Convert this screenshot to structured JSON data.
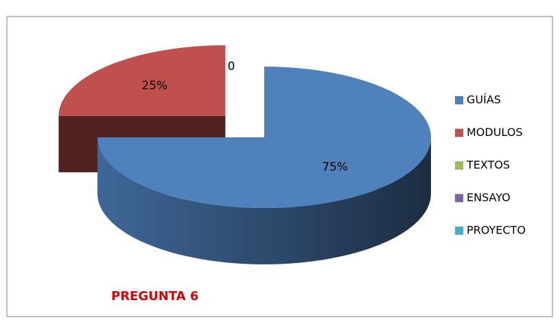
{
  "chart_data": {
    "type": "pie3d",
    "categories": [
      "GUÍAS",
      "MODULOS",
      "TEXTOS",
      "ENSAYO",
      "PROYECTO"
    ],
    "values": [
      75,
      25,
      0,
      0,
      0
    ],
    "value_labels": [
      "75%",
      "25%",
      "0",
      null,
      null
    ],
    "colors": [
      "#4f81bd",
      "#c0504d",
      "#9bbb59",
      "#8064a2",
      "#4bacc6"
    ],
    "legend": "right",
    "annotation": "PREGUNTA 6"
  }
}
